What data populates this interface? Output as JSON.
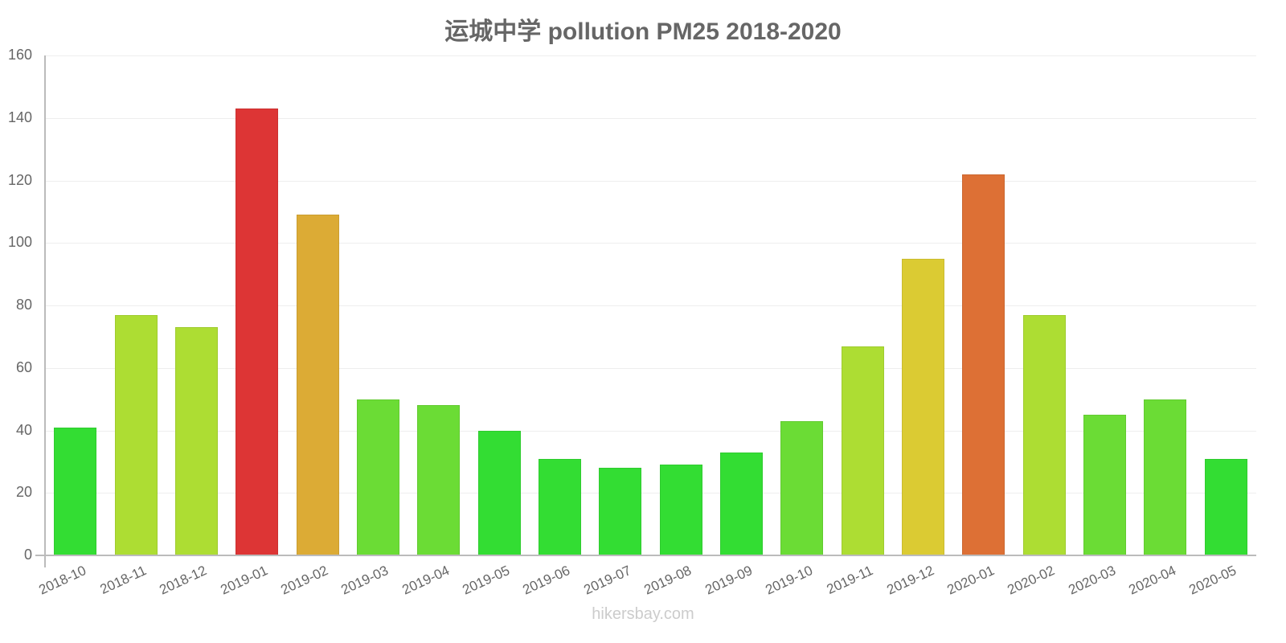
{
  "title": "运城中学 pollution PM25 2018-2020",
  "footer": "hikersbay.com",
  "y_ticks": [
    "0",
    "20",
    "40",
    "60",
    "80",
    "100",
    "120",
    "140",
    "160"
  ],
  "colors": {
    "green": "#33dd33",
    "light_green": "#6bdc35",
    "yellow_green": "#addd33",
    "yellow": "#dbcb33",
    "amber": "#dcab35",
    "orange": "#dd7035",
    "red": "#dd3535"
  },
  "chart_data": {
    "type": "bar",
    "title": "运城中学 pollution PM25 2018-2020",
    "xlabel": "",
    "ylabel": "",
    "ylim": [
      0,
      160
    ],
    "grid": true,
    "legend": null,
    "categories": [
      "2018-10",
      "2018-11",
      "2018-12",
      "2019-01",
      "2019-02",
      "2019-03",
      "2019-04",
      "2019-05",
      "2019-06",
      "2019-07",
      "2019-08",
      "2019-09",
      "2019-10",
      "2019-11",
      "2019-12",
      "2020-01",
      "2020-02",
      "2020-03",
      "2020-04",
      "2020-05"
    ],
    "values": [
      41,
      77,
      73,
      143,
      109,
      50,
      48,
      40,
      31,
      28,
      29,
      33,
      43,
      67,
      95,
      122,
      77,
      45,
      50,
      31
    ],
    "bar_colors": [
      "#33dd33",
      "#addd33",
      "#addd33",
      "#dd3535",
      "#dcab35",
      "#6bdc35",
      "#6bdc35",
      "#33dd33",
      "#33dd33",
      "#33dd33",
      "#33dd33",
      "#33dd33",
      "#6bdc35",
      "#addd33",
      "#dbcb33",
      "#dd7035",
      "#addd33",
      "#6bdc35",
      "#6bdc35",
      "#33dd33"
    ]
  }
}
